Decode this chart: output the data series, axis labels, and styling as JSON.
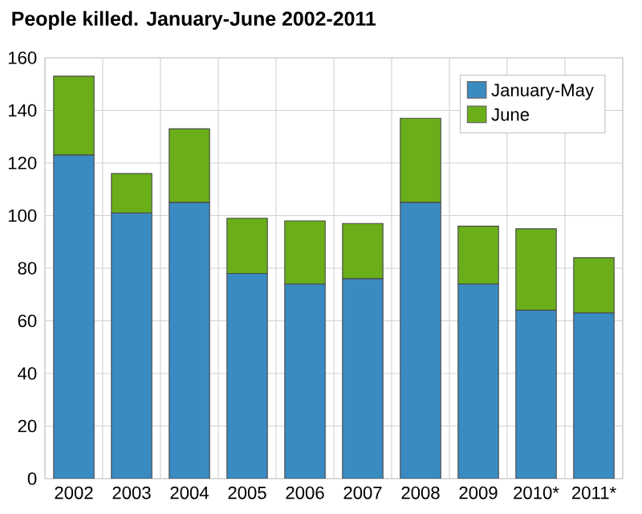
{
  "chart_data": {
    "type": "bar",
    "title": "People killed. January-June 2002-2011",
    "categories": [
      "2002",
      "2003",
      "2004",
      "2005",
      "2006",
      "2007",
      "2008",
      "2009",
      "2010*",
      "2011*"
    ],
    "series": [
      {
        "name": "January-May",
        "color": "#3a8bc2",
        "values": [
          123,
          101,
          105,
          78,
          74,
          76,
          105,
          74,
          64,
          63
        ]
      },
      {
        "name": "June",
        "color": "#6aaf1a",
        "values": [
          30,
          15,
          28,
          21,
          24,
          21,
          32,
          22,
          31,
          21
        ]
      }
    ],
    "stacked": true,
    "ylim": [
      0,
      160
    ],
    "yticks": [
      0,
      20,
      40,
      60,
      80,
      100,
      120,
      140,
      160
    ],
    "grid": true,
    "legend": "top right"
  }
}
